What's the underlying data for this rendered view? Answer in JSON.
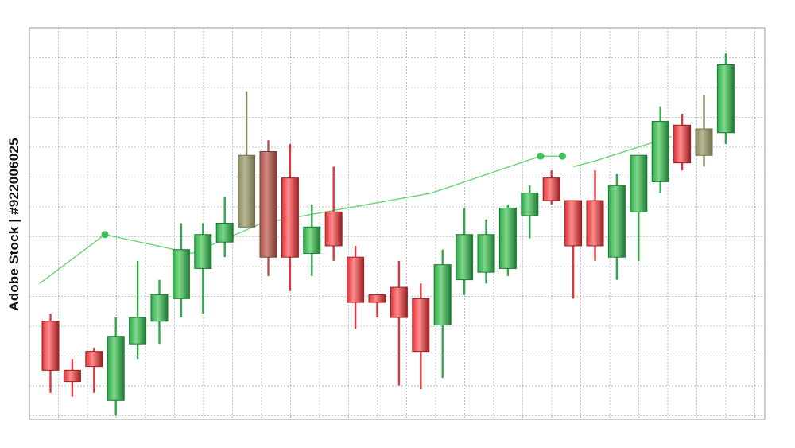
{
  "stock_id": "Adobe Stock | #922006025",
  "colors": {
    "bull": "#2ea84a",
    "bull_light": "#7fd98a",
    "bull_dark": "#1d7a33",
    "bear": "#e0353a",
    "bear_light": "#ff8b8b",
    "bear_dark": "#9c1e22",
    "olive": "#8a8a62",
    "olive_light": "#b8b894",
    "brown": "#a8574f",
    "brown_light": "#d08a80",
    "trend": "#6ad36e",
    "grid": "#b5b5b5",
    "frame": "#9a9a9a"
  },
  "chart_data": {
    "type": "candlestick",
    "title": "",
    "xlabel": "",
    "ylabel": "",
    "grid": true,
    "ylim": [
      0,
      100
    ],
    "candles": [
      {
        "o": 13,
        "h": 28,
        "l": 7,
        "c": 26,
        "color": "bear"
      },
      {
        "o": 10,
        "h": 16,
        "l": 6,
        "c": 13,
        "color": "bear"
      },
      {
        "o": 14,
        "h": 19,
        "l": 7,
        "c": 18,
        "color": "bear"
      },
      {
        "o": 5,
        "h": 27,
        "l": 1,
        "c": 22,
        "color": "bull"
      },
      {
        "o": 20,
        "h": 42,
        "l": 16,
        "c": 27,
        "color": "bull"
      },
      {
        "o": 26,
        "h": 37,
        "l": 20,
        "c": 33,
        "color": "bull"
      },
      {
        "o": 32,
        "h": 52,
        "l": 27,
        "c": 45,
        "color": "bull"
      },
      {
        "o": 40,
        "h": 52,
        "l": 28,
        "c": 49,
        "color": "bull"
      },
      {
        "o": 47,
        "h": 59,
        "l": 43,
        "c": 52,
        "color": "bull"
      },
      {
        "o": 51,
        "h": 87,
        "l": 51,
        "c": 70,
        "color": "olive"
      },
      {
        "o": 71,
        "h": 74,
        "l": 38,
        "c": 43,
        "color": "brown"
      },
      {
        "o": 64,
        "h": 73,
        "l": 34,
        "c": 43,
        "color": "bear"
      },
      {
        "o": 44,
        "h": 57,
        "l": 38,
        "c": 51,
        "color": "bull"
      },
      {
        "o": 55,
        "h": 67,
        "l": 42,
        "c": 46,
        "color": "bear"
      },
      {
        "o": 43,
        "h": 46,
        "l": 24,
        "c": 31,
        "color": "bear"
      },
      {
        "o": 33,
        "h": 33,
        "l": 27,
        "c": 31,
        "color": "bear"
      },
      {
        "o": 35,
        "h": 42,
        "l": 9,
        "c": 27,
        "color": "bear"
      },
      {
        "o": 32,
        "h": 36,
        "l": 8,
        "c": 18,
        "color": "bear"
      },
      {
        "o": 25,
        "h": 45,
        "l": 11,
        "c": 41,
        "color": "bull"
      },
      {
        "o": 37,
        "h": 56,
        "l": 33,
        "c": 49,
        "color": "bull"
      },
      {
        "o": 39,
        "h": 53,
        "l": 36,
        "c": 49,
        "color": "bull"
      },
      {
        "o": 40,
        "h": 57,
        "l": 38,
        "c": 56,
        "color": "bull"
      },
      {
        "o": 54,
        "h": 62,
        "l": 48,
        "c": 60,
        "color": "bull"
      },
      {
        "o": 64,
        "h": 66,
        "l": 57,
        "c": 58,
        "color": "bear"
      },
      {
        "o": 58,
        "h": 58,
        "l": 32,
        "c": 46,
        "color": "bear"
      },
      {
        "o": 58,
        "h": 66,
        "l": 42,
        "c": 46,
        "color": "bear"
      },
      {
        "o": 43,
        "h": 65,
        "l": 37,
        "c": 62,
        "color": "bull"
      },
      {
        "o": 55,
        "h": 70,
        "l": 42,
        "c": 70,
        "color": "bull"
      },
      {
        "o": 63,
        "h": 83,
        "l": 60,
        "c": 79,
        "color": "bull"
      },
      {
        "o": 78,
        "h": 81,
        "l": 66,
        "c": 68,
        "color": "bear"
      },
      {
        "o": 70,
        "h": 86,
        "l": 67,
        "c": 77,
        "color": "olive"
      },
      {
        "o": 76,
        "h": 97,
        "l": 73,
        "c": 94,
        "color": "bull"
      }
    ],
    "trend_lines": [
      {
        "points": [
          [
            -0.5,
            36
          ],
          [
            2.5,
            49
          ],
          [
            6.5,
            44
          ],
          [
            9.7,
            52
          ],
          [
            17.5,
            60
          ],
          [
            22.5,
            69.8
          ],
          [
            23.5,
            69.8
          ]
        ],
        "markers": [
          1,
          5,
          6
        ]
      },
      {
        "points": [
          [
            24,
            67
          ],
          [
            25,
            68.5
          ],
          [
            28.5,
            75
          ]
        ],
        "markers": []
      }
    ]
  }
}
